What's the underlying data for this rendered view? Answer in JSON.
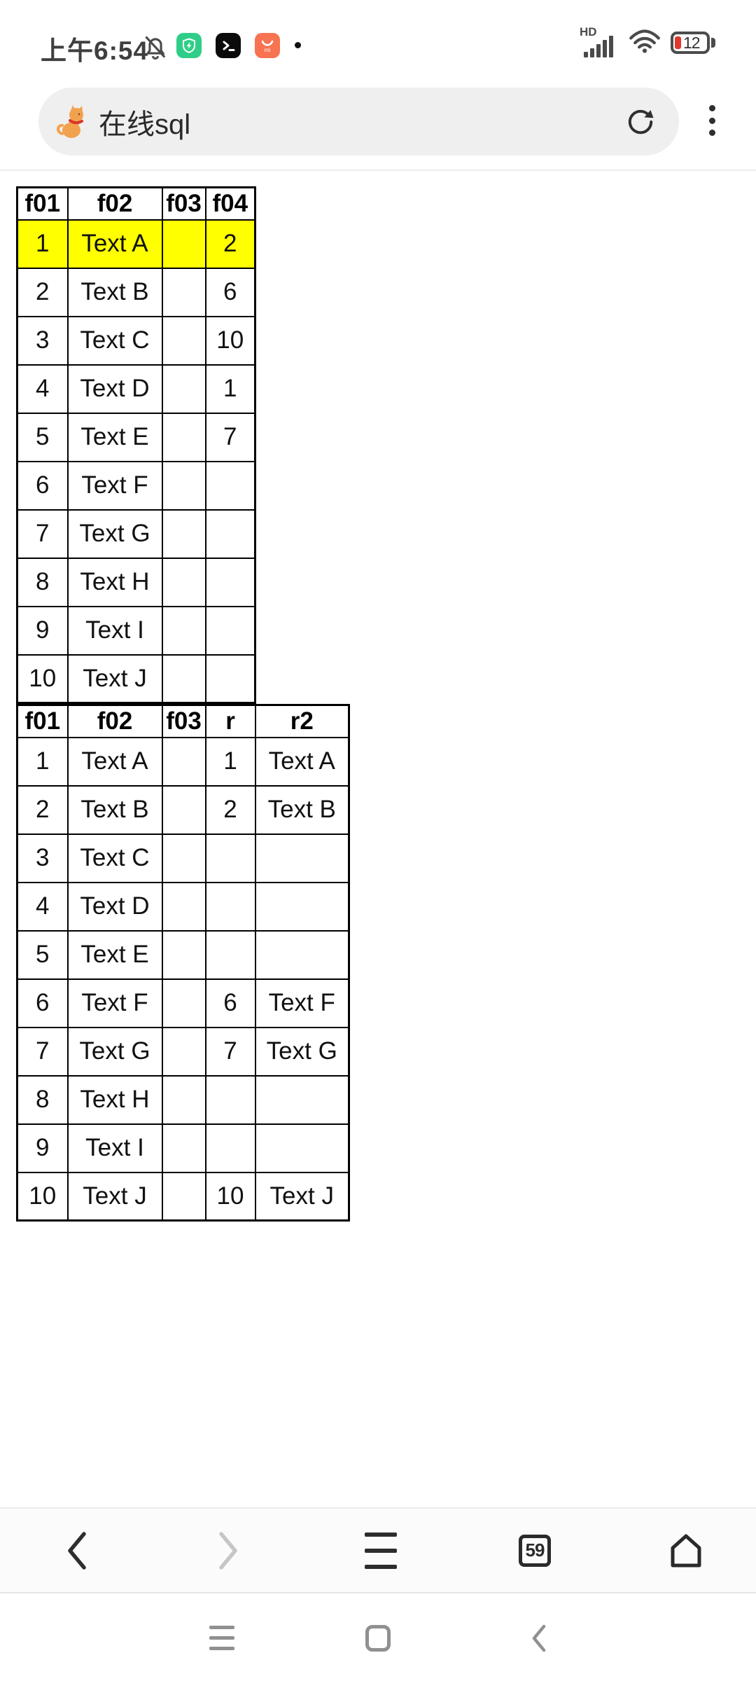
{
  "status_bar": {
    "time": "上午6:54",
    "network_label": "HD",
    "battery_percent": "12",
    "left_icons": [
      "muted-bell-icon",
      "security-shield-app-icon",
      "terminal-app-icon",
      "mi-store-app-icon",
      "notification-dot"
    ],
    "right_icons": [
      "signal-bars-icon",
      "wifi-icon",
      "battery-icon"
    ]
  },
  "address_bar": {
    "site_icon": "cat-favicon",
    "query": "在线sql",
    "actions": [
      "refresh-icon",
      "overflow-menu-icon"
    ]
  },
  "page": {
    "tables": [
      {
        "headers": [
          "f01",
          "f02",
          "f03",
          "f04"
        ],
        "highlight_color": "#ffff00",
        "rows": [
          {
            "cells": [
              "1",
              "Text A",
              "",
              "2"
            ],
            "highlight": true
          },
          {
            "cells": [
              "2",
              "Text B",
              "",
              "6"
            ],
            "highlight": false
          },
          {
            "cells": [
              "3",
              "Text C",
              "",
              "10"
            ],
            "highlight": false
          },
          {
            "cells": [
              "4",
              "Text D",
              "",
              "1"
            ],
            "highlight": false
          },
          {
            "cells": [
              "5",
              "Text E",
              "",
              "7"
            ],
            "highlight": false
          },
          {
            "cells": [
              "6",
              "Text F",
              "",
              ""
            ],
            "highlight": false
          },
          {
            "cells": [
              "7",
              "Text G",
              "",
              ""
            ],
            "highlight": false
          },
          {
            "cells": [
              "8",
              "Text H",
              "",
              ""
            ],
            "highlight": false
          },
          {
            "cells": [
              "9",
              "Text I",
              "",
              ""
            ],
            "highlight": false
          },
          {
            "cells": [
              "10",
              "Text J",
              "",
              ""
            ],
            "highlight": false
          }
        ]
      },
      {
        "headers": [
          "f01",
          "f02",
          "f03",
          "r",
          "r2"
        ],
        "rows": [
          {
            "cells": [
              "1",
              "Text A",
              "",
              "1",
              "Text A"
            ],
            "highlight": false
          },
          {
            "cells": [
              "2",
              "Text B",
              "",
              "2",
              "Text B"
            ],
            "highlight": false
          },
          {
            "cells": [
              "3",
              "Text C",
              "",
              "",
              ""
            ],
            "highlight": false
          },
          {
            "cells": [
              "4",
              "Text D",
              "",
              "",
              ""
            ],
            "highlight": false
          },
          {
            "cells": [
              "5",
              "Text E",
              "",
              "",
              ""
            ],
            "highlight": false
          },
          {
            "cells": [
              "6",
              "Text F",
              "",
              "6",
              "Text F"
            ],
            "highlight": false
          },
          {
            "cells": [
              "7",
              "Text G",
              "",
              "7",
              "Text G"
            ],
            "highlight": false
          },
          {
            "cells": [
              "8",
              "Text H",
              "",
              "",
              ""
            ],
            "highlight": false
          },
          {
            "cells": [
              "9",
              "Text I",
              "",
              "",
              ""
            ],
            "highlight": false
          },
          {
            "cells": [
              "10",
              "Text J",
              "",
              "10",
              "Text J"
            ],
            "highlight": false
          }
        ]
      }
    ]
  },
  "browser_nav": {
    "tab_count": "59",
    "buttons": [
      "back-icon",
      "forward-icon",
      "menu-icon",
      "tab-counter",
      "home-icon"
    ]
  },
  "system_nav": {
    "buttons": [
      "recent-menu-icon",
      "home-square-icon",
      "back-chevron-icon"
    ]
  },
  "colors": {
    "highlight": "#ffff00",
    "app_green": "#2fce88",
    "app_orange": "#f87351",
    "battery_warning": "#e0382c",
    "chrome_gray": "#efefef"
  }
}
